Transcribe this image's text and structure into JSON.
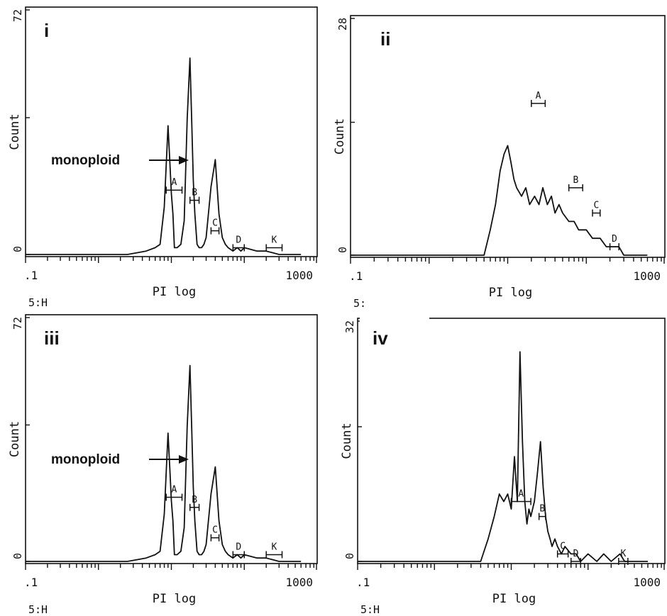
{
  "chart_data": [
    {
      "panel": "i",
      "type": "line",
      "ylabel": "Count",
      "xlabel": "PI log",
      "xscale": "log",
      "xlim": [
        0.1,
        1000
      ],
      "ylim": [
        0,
        72
      ],
      "ytick_labels": [
        "0",
        "72"
      ],
      "xtick_labels": [
        ".1",
        "1000"
      ],
      "x": [
        0.1,
        2.5,
        4.5,
        6.0,
        7.0,
        8.0,
        9.0,
        9.5,
        10.0,
        10.5,
        11.0,
        12.0,
        13.5,
        15.0,
        16.5,
        18.0,
        19.0,
        20.0,
        21.0,
        22.5,
        24.0,
        26.0,
        28.0,
        30.0,
        35.0,
        40.0,
        45.0,
        50.0,
        55.0,
        60.0,
        70.0,
        80.0,
        90.0,
        100.0,
        150.0,
        200.0,
        300.0,
        400.0,
        600.0
      ],
      "y": [
        0,
        0,
        1,
        2,
        3,
        14,
        38,
        28,
        18,
        12,
        2,
        2,
        3,
        10,
        40,
        58,
        40,
        22,
        12,
        3,
        2,
        2,
        3,
        5,
        20,
        28,
        12,
        5,
        3,
        2,
        1,
        2,
        1,
        2,
        1,
        1,
        0,
        0,
        0
      ],
      "gates": [
        {
          "label": "A",
          "from": 8.5,
          "to": 14.0,
          "y": 19
        },
        {
          "label": "B",
          "from": 18.0,
          "to": 24.0,
          "y": 16
        },
        {
          "label": "C",
          "from": 35.0,
          "to": 45.0,
          "y": 7
        },
        {
          "label": "D",
          "from": 70.0,
          "to": 100.0,
          "y": 2
        },
        {
          "label": "K",
          "from": 200.0,
          "to": 330.0,
          "y": 2
        }
      ],
      "annotation": "monoploid",
      "footer": "5:H"
    },
    {
      "panel": "ii",
      "type": "line",
      "ylabel": "Count",
      "xlabel": "PI log",
      "xscale": "log",
      "xlim": [
        0.1,
        1000
      ],
      "ylim": [
        0,
        28
      ],
      "ytick_labels": [
        "0",
        "28"
      ],
      "xtick_labels": [
        ".1",
        "1000"
      ],
      "x": [
        0.1,
        5.0,
        6.0,
        7.0,
        8.0,
        9.0,
        10.0,
        11.0,
        12.0,
        13.0,
        15.0,
        17.0,
        19.0,
        22.0,
        25.0,
        28.0,
        32.0,
        36.0,
        40.0,
        45.0,
        50.0,
        60.0,
        70.0,
        80.0,
        100.0,
        120.0,
        150.0,
        180.0,
        220.0,
        260.0,
        300.0,
        400.0,
        600.0
      ],
      "y": [
        0,
        0,
        3,
        6,
        10,
        12,
        13,
        11,
        9,
        8,
        7,
        8,
        6,
        7,
        6,
        8,
        6,
        7,
        5,
        6,
        5,
        4,
        4,
        3,
        3,
        2,
        2,
        1,
        1,
        1,
        0,
        0,
        0
      ],
      "gates": [
        {
          "label": "A",
          "from": 20.0,
          "to": 30.0,
          "y": 18
        },
        {
          "label": "B",
          "from": 60.0,
          "to": 90.0,
          "y": 8
        },
        {
          "label": "C",
          "from": 120.0,
          "to": 150.0,
          "y": 5
        },
        {
          "label": "D",
          "from": 200.0,
          "to": 260.0,
          "y": 1
        }
      ],
      "footer": "5:"
    },
    {
      "panel": "iii",
      "type": "line",
      "ylabel": "Count",
      "xlabel": "PI log",
      "xscale": "log",
      "xlim": [
        0.1,
        1000
      ],
      "ylim": [
        0,
        72
      ],
      "ytick_labels": [
        "0",
        "72"
      ],
      "xtick_labels": [
        ".1",
        "1000"
      ],
      "x": [
        0.1,
        2.5,
        4.5,
        6.0,
        7.0,
        8.0,
        9.0,
        9.5,
        10.0,
        10.5,
        11.0,
        12.0,
        13.5,
        15.0,
        16.5,
        18.0,
        19.0,
        20.0,
        21.0,
        22.5,
        24.0,
        26.0,
        28.0,
        30.0,
        35.0,
        40.0,
        45.0,
        50.0,
        55.0,
        60.0,
        70.0,
        80.0,
        90.0,
        100.0,
        150.0,
        200.0,
        300.0,
        400.0,
        600.0
      ],
      "y": [
        0,
        0,
        1,
        2,
        3,
        14,
        38,
        28,
        18,
        12,
        2,
        2,
        3,
        10,
        40,
        58,
        40,
        22,
        12,
        3,
        2,
        2,
        3,
        5,
        20,
        28,
        12,
        5,
        3,
        2,
        1,
        2,
        1,
        2,
        1,
        1,
        0,
        0,
        0
      ],
      "gates": [
        {
          "label": "A",
          "from": 8.5,
          "to": 14.0,
          "y": 19
        },
        {
          "label": "B",
          "from": 18.0,
          "to": 24.0,
          "y": 16
        },
        {
          "label": "C",
          "from": 35.0,
          "to": 45.0,
          "y": 7
        },
        {
          "label": "D",
          "from": 70.0,
          "to": 100.0,
          "y": 2
        },
        {
          "label": "K",
          "from": 200.0,
          "to": 330.0,
          "y": 2
        }
      ],
      "annotation": "monoploid",
      "footer": "5:H"
    },
    {
      "panel": "iv",
      "type": "line",
      "ylabel": "Count",
      "xlabel": "PI log",
      "xscale": "log",
      "xlim": [
        0.1,
        1000
      ],
      "ylim": [
        0,
        32
      ],
      "ytick_labels": [
        "0",
        "32"
      ],
      "xtick_labels": [
        ".1",
        "1000"
      ],
      "x": [
        0.1,
        4.0,
        5.0,
        6.0,
        7.0,
        8.0,
        9.0,
        10.0,
        11.0,
        12.0,
        13.0,
        14.0,
        15.0,
        16.0,
        17.0,
        18.0,
        20.0,
        22.0,
        24.0,
        26.0,
        28.0,
        30.0,
        32.0,
        34.0,
        37.0,
        40.0,
        45.0,
        50.0,
        60.0,
        70.0,
        80.0,
        100.0,
        130.0,
        160.0,
        200.0,
        260.0,
        300.0,
        400.0,
        600.0
      ],
      "y": [
        0,
        0,
        3,
        6,
        9,
        8,
        9,
        7,
        14,
        8,
        28,
        16,
        8,
        5,
        7,
        6,
        8,
        12,
        16,
        10,
        6,
        4,
        3,
        2,
        3,
        2,
        1,
        2,
        1,
        1,
        0,
        1,
        0,
        1,
        0,
        1,
        0,
        0,
        0
      ],
      "gates": [
        {
          "label": "A",
          "from": 10.0,
          "to": 18.0,
          "y": 8
        },
        {
          "label": "B",
          "from": 23.0,
          "to": 28.0,
          "y": 6
        },
        {
          "label": "C",
          "from": 40.0,
          "to": 55.0,
          "y": 1
        },
        {
          "label": "D",
          "from": 60.0,
          "to": 80.0,
          "y": 0
        },
        {
          "label": "K",
          "from": 250.0,
          "to": 330.0,
          "y": 0
        }
      ],
      "footer": "5:H"
    }
  ]
}
